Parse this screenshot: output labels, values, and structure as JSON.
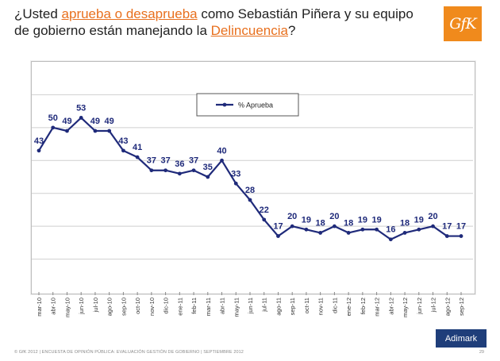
{
  "title": {
    "part1": "¿Usted ",
    "highlight1": "aprueba o desaprueba",
    "part2": " como Sebastián Piñera y su equipo de gobierno están manejando la ",
    "highlight2": "Delincuencia",
    "part3": "?"
  },
  "logo": {
    "text": "GfK"
  },
  "footer": {
    "text": "© GfK 2012 | ENCUESTA DE OPINIÓN PÚBLICA: EVALUACIÓN GESTIÓN DE GOBIERNO | SEPTIEMBRE 2012",
    "page": "29"
  },
  "badge": {
    "text": "Adimark"
  },
  "colors": {
    "series": "#1f2a7a",
    "accent": "#e8701e",
    "badge": "#1f3e7a"
  },
  "chart_data": {
    "type": "line",
    "title": "",
    "xlabel": "",
    "ylabel": "",
    "ylim": [
      0,
      70
    ],
    "grid": true,
    "legend": {
      "position": "top-center",
      "entries": [
        "% Aprueba"
      ]
    },
    "categories": [
      "mar-10",
      "abr-10",
      "may-10",
      "jun-10",
      "jul-10",
      "ago-10",
      "sep-10",
      "oct-10",
      "nov-10",
      "dic-10",
      "ene-11",
      "feb-11",
      "mar-11",
      "abr-11",
      "may-11",
      "jun-11",
      "jul-11",
      "ago-11",
      "sep-11",
      "oct-11",
      "nov-11",
      "dic-11",
      "ene-12",
      "feb-12",
      "mar-12",
      "abr-12",
      "may-12",
      "jun-12",
      "jul-12",
      "ago-12",
      "sep-12"
    ],
    "series": [
      {
        "name": "% Aprueba",
        "values": [
          43,
          50,
          49,
          53,
          49,
          49,
          43,
          41,
          37,
          37,
          36,
          37,
          35,
          40,
          33,
          28,
          22,
          17,
          20,
          19,
          18,
          20,
          18,
          19,
          19,
          16,
          18,
          19,
          20,
          17,
          17
        ]
      }
    ]
  }
}
